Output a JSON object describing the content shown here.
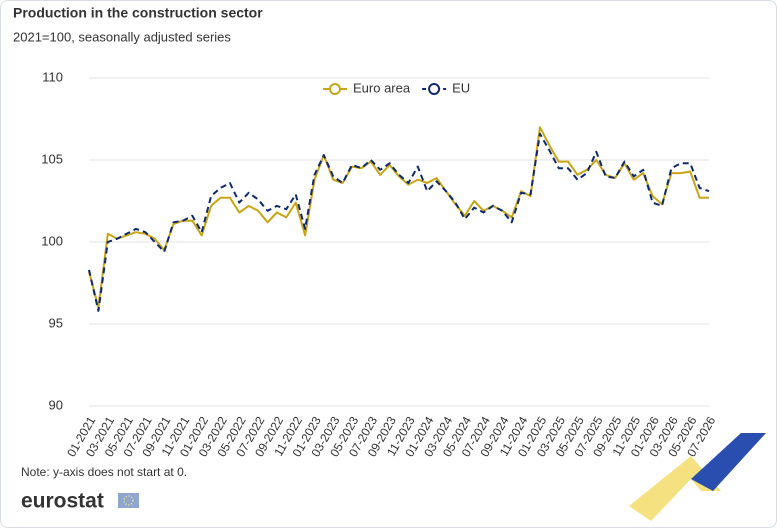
{
  "chart_data": {
    "type": "line",
    "title": "Production in the construction sector",
    "subtitle": "2021=100, seasonally adjusted series",
    "note": "Note: y-axis does not start at 0.",
    "source": "eurostat",
    "categories": [
      "01-2021",
      null,
      "03-2021",
      null,
      "05-2021",
      null,
      "07-2021",
      null,
      "09-2021",
      null,
      "11-2021",
      null,
      "01-2022",
      null,
      "03-2022",
      null,
      "05-2022",
      null,
      "07-2022",
      null,
      "09-2022",
      null,
      "11-2022",
      null,
      "01-2023",
      null,
      "03-2023",
      null,
      "05-2023",
      null,
      "07-2023",
      null,
      "09-2023",
      null,
      "11-2023",
      null,
      "01-2024",
      null,
      "03-2024",
      null,
      "05-2024",
      null,
      "07-2024",
      null,
      "09-2024",
      null,
      "11-2024",
      null,
      "01-2025",
      null,
      "03-2025",
      null,
      "05-2025",
      null,
      "07-2025",
      null,
      "09-2025",
      null,
      "11-2025",
      null,
      "01-2026",
      null,
      "03-2026",
      null,
      "05-2026",
      null,
      "07-2026"
    ],
    "series": [
      {
        "name": "Euro area",
        "color": "#c9a515",
        "dashed": false,
        "values": [
          98.2,
          96.0,
          100.5,
          100.2,
          100.4,
          100.6,
          100.5,
          100.2,
          99.5,
          101.1,
          101.3,
          101.3,
          100.4,
          102.2,
          102.7,
          102.7,
          101.8,
          102.2,
          101.9,
          101.2,
          101.8,
          101.5,
          102.4,
          100.4,
          103.8,
          105.3,
          103.8,
          103.6,
          104.6,
          104.5,
          104.9,
          104.1,
          104.7,
          104.0,
          103.5,
          103.8,
          103.6,
          103.9,
          103.1,
          102.3,
          101.6,
          102.5,
          101.9,
          102.2,
          101.9,
          101.5,
          103.1,
          102.8,
          107.0,
          105.9,
          104.9,
          104.9,
          104.1,
          104.4,
          105.0,
          104.1,
          103.9,
          104.8,
          103.8,
          104.2,
          102.8,
          102.3,
          104.2,
          104.2,
          104.3,
          102.7,
          102.7
        ]
      },
      {
        "name": "EU",
        "color": "#0e2a6e",
        "dashed": true,
        "values": [
          98.3,
          95.8,
          100.0,
          100.2,
          100.5,
          100.8,
          100.6,
          100.0,
          99.4,
          101.2,
          101.3,
          101.6,
          100.6,
          102.8,
          103.3,
          103.6,
          102.4,
          103.0,
          102.6,
          101.9,
          102.2,
          102.0,
          102.9,
          100.8,
          104.1,
          105.3,
          104.0,
          103.6,
          104.7,
          104.5,
          105.0,
          104.4,
          104.8,
          104.1,
          103.6,
          104.6,
          103.1,
          103.7,
          103.1,
          102.4,
          101.4,
          102.1,
          101.8,
          102.2,
          101.9,
          101.2,
          103.0,
          102.9,
          106.6,
          105.6,
          104.5,
          104.5,
          103.8,
          104.2,
          105.5,
          104.0,
          103.9,
          104.9,
          104.0,
          104.4,
          102.4,
          102.2,
          104.5,
          104.8,
          104.8,
          103.3,
          103.1
        ]
      }
    ],
    "ylim": [
      90,
      110
    ],
    "yticks": [
      90,
      95,
      100,
      105,
      110
    ],
    "grid": true,
    "legend": "top"
  }
}
